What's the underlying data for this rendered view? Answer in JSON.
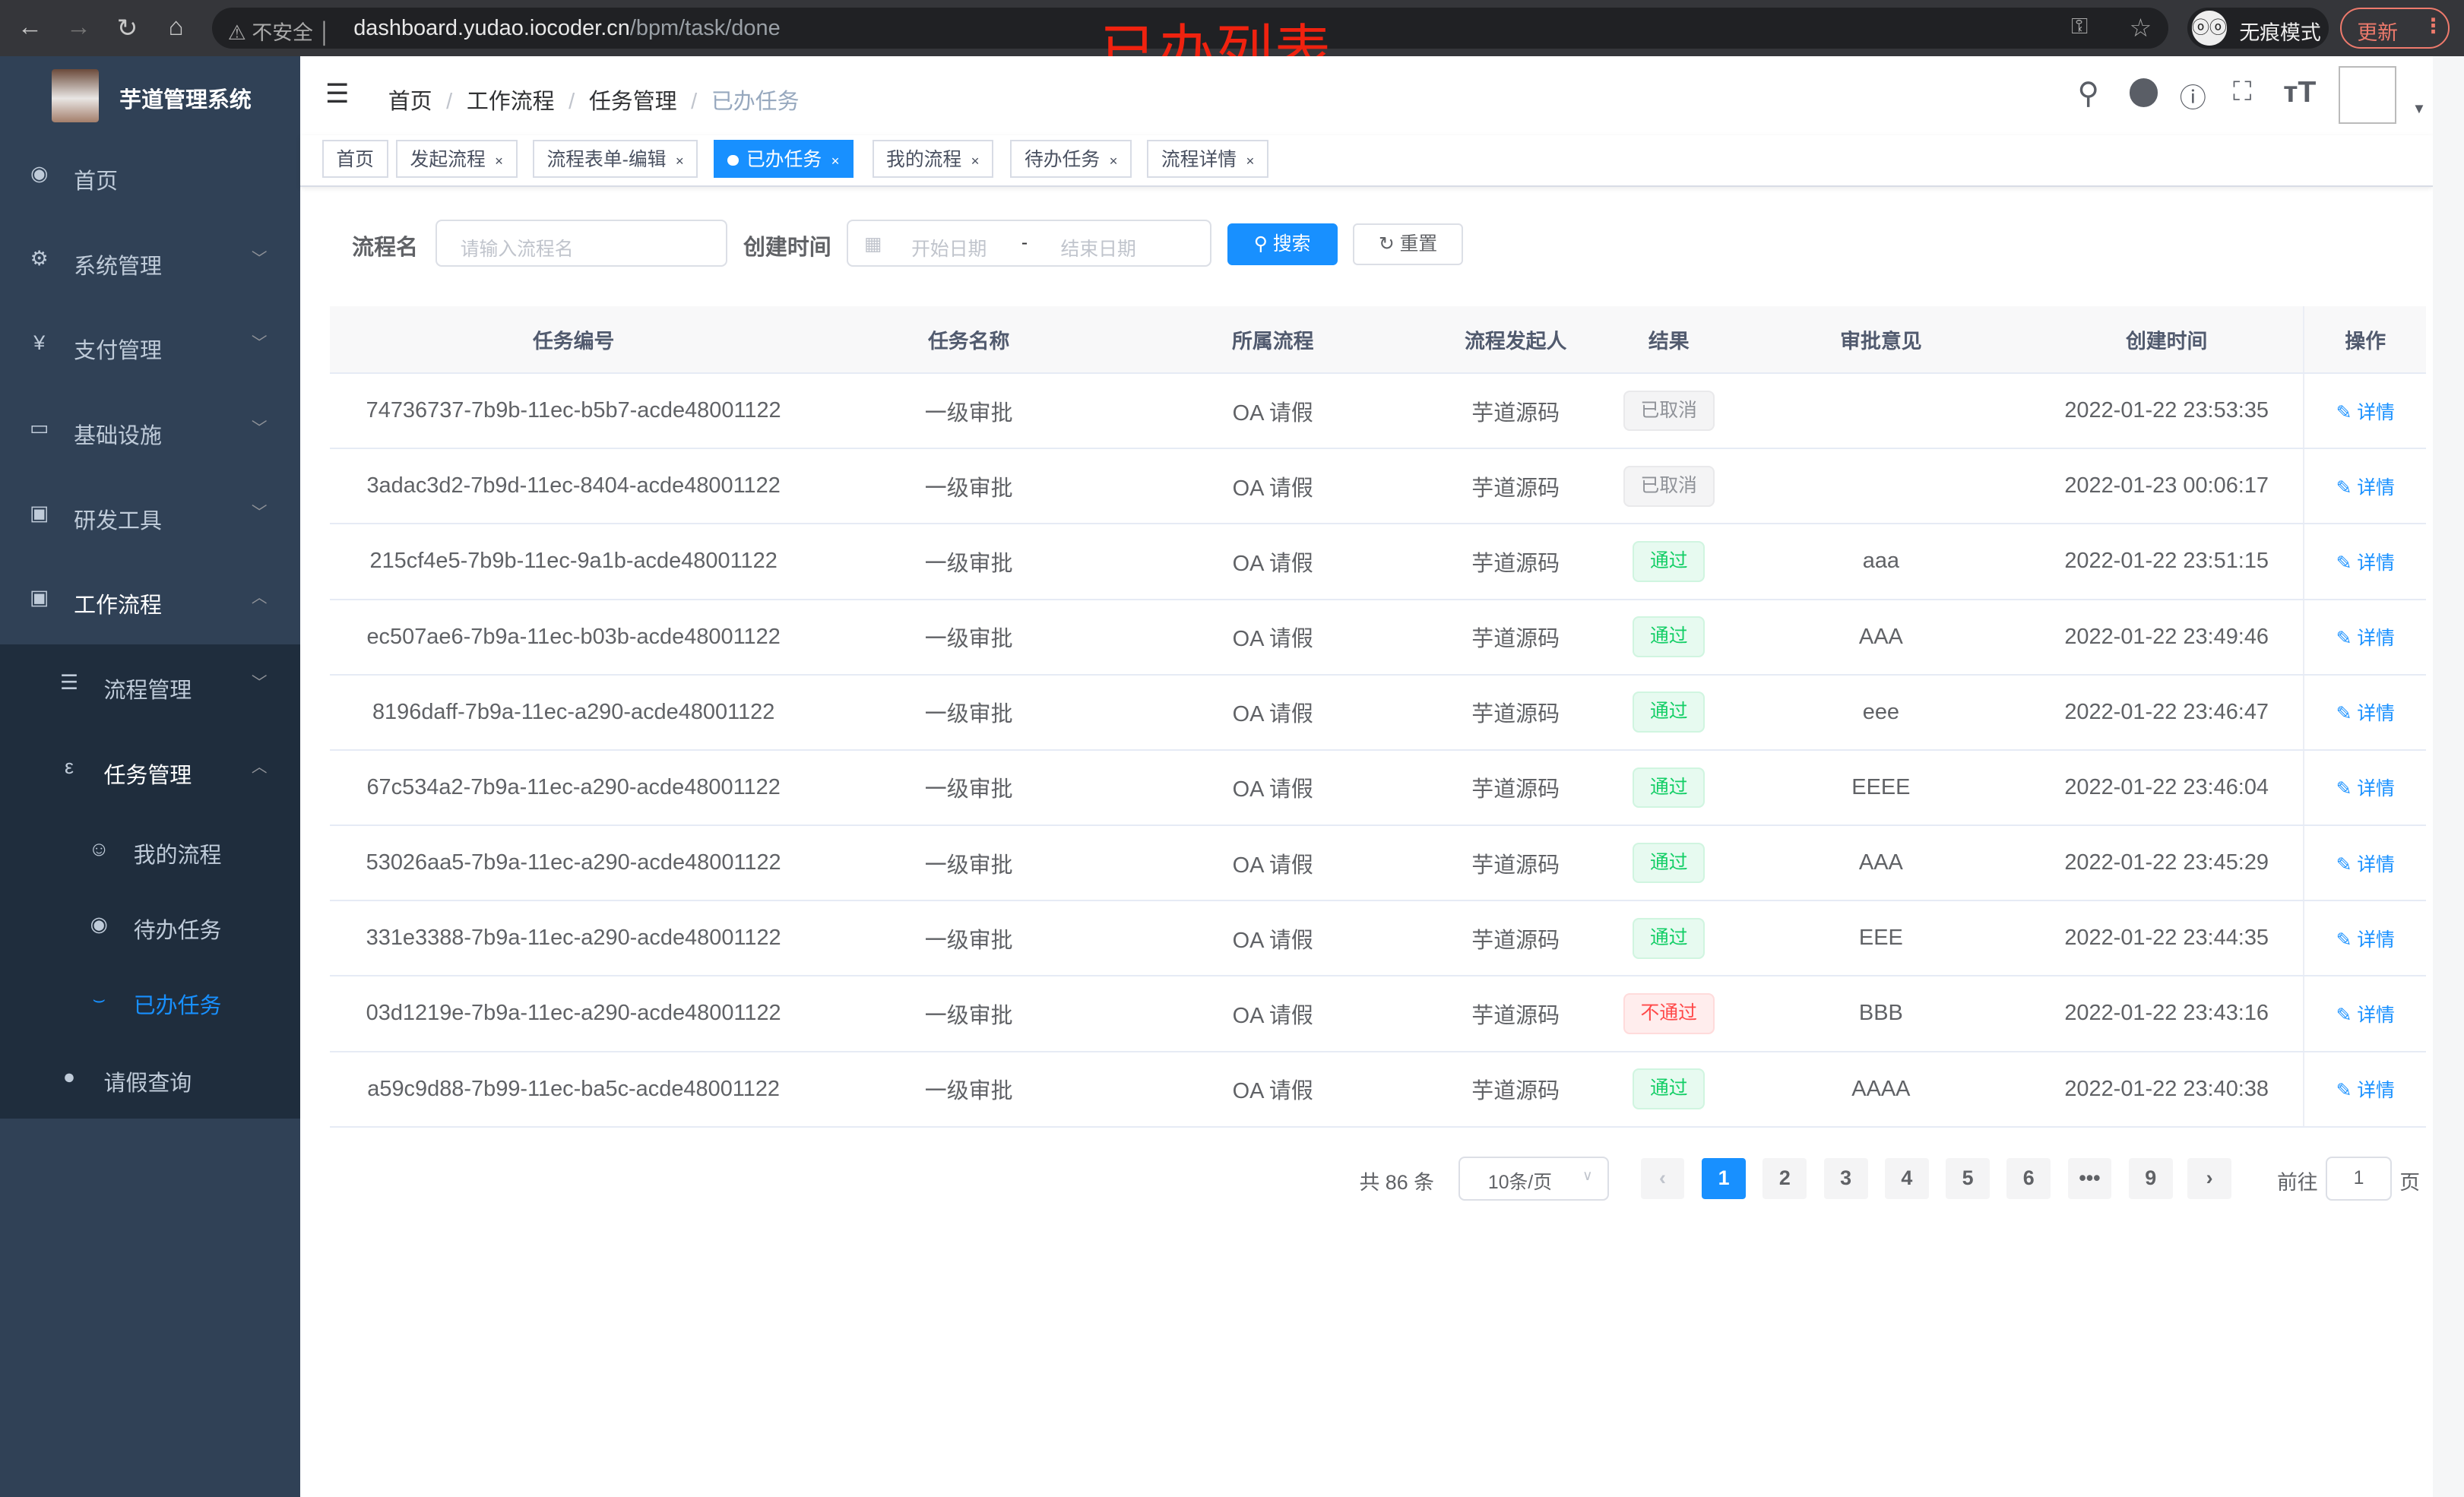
{
  "browser": {
    "security": "不安全",
    "url_host": "dashboard.yudao.iocoder.cn",
    "url_path": "/bpm/task/done",
    "incognito": "无痕模式",
    "update": "更新"
  },
  "annotation": "已办列表",
  "sidebar": {
    "title": "芋道管理系统",
    "items": [
      {
        "label": "首页",
        "icon": "dashboard-icon"
      },
      {
        "label": "系统管理",
        "icon": "gear-icon"
      },
      {
        "label": "支付管理",
        "icon": "yen-icon"
      },
      {
        "label": "基础设施",
        "icon": "monitor-icon"
      },
      {
        "label": "研发工具",
        "icon": "toolbox-icon"
      },
      {
        "label": "工作流程",
        "icon": "toolbox-icon"
      }
    ],
    "sub": [
      {
        "label": "流程管理"
      },
      {
        "label": "任务管理"
      }
    ],
    "subsub": [
      {
        "label": "我的流程"
      },
      {
        "label": "待办任务"
      },
      {
        "label": "已办任务"
      }
    ],
    "last": {
      "label": "请假查询"
    },
    "active_color": "#1890ff"
  },
  "breadcrumb": [
    "首页",
    "工作流程",
    "任务管理",
    "已办任务"
  ],
  "tags": [
    "首页",
    "发起流程",
    "流程表单-编辑",
    "已办任务",
    "我的流程",
    "待办任务",
    "流程详情"
  ],
  "search": {
    "name_label": "流程名",
    "name_placeholder": "请输入流程名",
    "time_label": "创建时间",
    "start_placeholder": "开始日期",
    "sep": "-",
    "end_placeholder": "结束日期",
    "search_btn": "搜索",
    "reset_btn": "重置"
  },
  "table": {
    "headers": [
      "任务编号",
      "任务名称",
      "所属流程",
      "流程发起人",
      "结果",
      "审批意见",
      "创建时间",
      "操作"
    ],
    "rows": [
      {
        "id": "74736737-7b9b-11ec-b5b7-acde48001122",
        "name": "一级审批",
        "flow": "OA 请假",
        "initiator": "芋道源码",
        "result": "已取消",
        "status": "cancel",
        "opinion": "",
        "time": "2022-01-22 23:53:35",
        "action": "详情"
      },
      {
        "id": "3adac3d2-7b9d-11ec-8404-acde48001122",
        "name": "一级审批",
        "flow": "OA 请假",
        "initiator": "芋道源码",
        "result": "已取消",
        "status": "cancel",
        "opinion": "",
        "time": "2022-01-23 00:06:17",
        "action": "详情"
      },
      {
        "id": "215cf4e5-7b9b-11ec-9a1b-acde48001122",
        "name": "一级审批",
        "flow": "OA 请假",
        "initiator": "芋道源码",
        "result": "通过",
        "status": "pass",
        "opinion": "aaa",
        "time": "2022-01-22 23:51:15",
        "action": "详情"
      },
      {
        "id": "ec507ae6-7b9a-11ec-b03b-acde48001122",
        "name": "一级审批",
        "flow": "OA 请假",
        "initiator": "芋道源码",
        "result": "通过",
        "status": "pass",
        "opinion": "AAA",
        "time": "2022-01-22 23:49:46",
        "action": "详情"
      },
      {
        "id": "8196daff-7b9a-11ec-a290-acde48001122",
        "name": "一级审批",
        "flow": "OA 请假",
        "initiator": "芋道源码",
        "result": "通过",
        "status": "pass",
        "opinion": "eee",
        "time": "2022-01-22 23:46:47",
        "action": "详情"
      },
      {
        "id": "67c534a2-7b9a-11ec-a290-acde48001122",
        "name": "一级审批",
        "flow": "OA 请假",
        "initiator": "芋道源码",
        "result": "通过",
        "status": "pass",
        "opinion": "EEEE",
        "time": "2022-01-22 23:46:04",
        "action": "详情"
      },
      {
        "id": "53026aa5-7b9a-11ec-a290-acde48001122",
        "name": "一级审批",
        "flow": "OA 请假",
        "initiator": "芋道源码",
        "result": "通过",
        "status": "pass",
        "opinion": "AAA",
        "time": "2022-01-22 23:45:29",
        "action": "详情"
      },
      {
        "id": "331e3388-7b9a-11ec-a290-acde48001122",
        "name": "一级审批",
        "flow": "OA 请假",
        "initiator": "芋道源码",
        "result": "通过",
        "status": "pass",
        "opinion": "EEE",
        "time": "2022-01-22 23:44:35",
        "action": "详情"
      },
      {
        "id": "03d1219e-7b9a-11ec-a290-acde48001122",
        "name": "一级审批",
        "flow": "OA 请假",
        "initiator": "芋道源码",
        "result": "不通过",
        "status": "reject",
        "opinion": "BBB",
        "time": "2022-01-22 23:43:16",
        "action": "详情"
      },
      {
        "id": "a59c9d88-7b99-11ec-ba5c-acde48001122",
        "name": "一级审批",
        "flow": "OA 请假",
        "initiator": "芋道源码",
        "result": "通过",
        "status": "pass",
        "opinion": "AAAA",
        "time": "2022-01-22 23:40:38",
        "action": "详情"
      }
    ]
  },
  "pagination": {
    "total": "共 86 条",
    "page_size": "10条/页",
    "pages": [
      "1",
      "2",
      "3",
      "4",
      "5",
      "6",
      "•••",
      "9"
    ],
    "current": "1",
    "goto_label": "前往",
    "goto_value": "1",
    "goto_suffix": "页"
  },
  "colors": {
    "primary": "#1890ff",
    "sidebar": "#304156",
    "pass": "#13ce66",
    "reject": "#ff4949",
    "cancel": "#909399"
  }
}
